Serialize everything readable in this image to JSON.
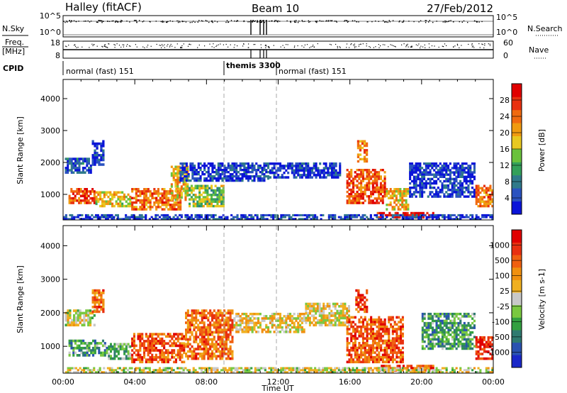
{
  "header": {
    "station": "Halley (fitACF)",
    "beam": "Beam 10",
    "date": "27/Feb/2012"
  },
  "aux_panels": {
    "nsky_label": "N.Sky",
    "nsky_ticks": [
      "10^5",
      "10^0"
    ],
    "nsearch_label": "N.Search",
    "nsearch_ticks": [
      "10^5",
      "10^0"
    ],
    "freq_label_1": "Freq.",
    "freq_label_2": "[MHz]",
    "freq_ticks": [
      "18",
      "8"
    ],
    "nave_label": "Nave",
    "nave_ticks": [
      "60",
      "0"
    ],
    "cpid_label": "CPID",
    "cpid_segments": [
      {
        "label": "normal (fast) 151",
        "start_hour": 0.0,
        "end_hour": 9.0
      },
      {
        "label": "themis 3300",
        "start_hour": 9.0,
        "end_hour": 12.0
      },
      {
        "label": "normal (fast) 151",
        "start_hour": 12.0,
        "end_hour": 24.0
      }
    ]
  },
  "chart_data": [
    {
      "type": "heatmap",
      "name": "power-panel",
      "ylabel": "Slant Range [km]",
      "ylim": [
        200,
        4600
      ],
      "y_ticks": [
        1000,
        2000,
        3000,
        4000
      ],
      "xlim": [
        0,
        24
      ],
      "colorbar": {
        "label": "Power [dB]",
        "tick_labels": [
          "4",
          "8",
          "12",
          "16",
          "20",
          "24",
          "28"
        ],
        "colors": [
          "#0a14d8",
          "#2a52c0",
          "#2f7a8a",
          "#33a05a",
          "#6ac23c",
          "#e8c820",
          "#f09a10",
          "#f06a10",
          "#e83010",
          "#e00000"
        ]
      },
      "regions": [
        {
          "t0": 0.1,
          "t1": 1.6,
          "r0": 1650,
          "r1": 2150,
          "level": 0.15
        },
        {
          "t0": 1.6,
          "t1": 2.3,
          "r0": 1900,
          "r1": 2700,
          "level": 0.1
        },
        {
          "t0": 0.3,
          "t1": 1.8,
          "r0": 700,
          "r1": 1200,
          "level": 0.8
        },
        {
          "t0": 1.8,
          "t1": 3.8,
          "r0": 600,
          "r1": 1100,
          "level": 0.55
        },
        {
          "t0": 3.8,
          "t1": 6.6,
          "r0": 500,
          "r1": 1200,
          "level": 0.75
        },
        {
          "t0": 6.0,
          "t1": 7.0,
          "r0": 800,
          "r1": 1900,
          "level": 0.6
        },
        {
          "t0": 7.0,
          "t1": 9.0,
          "r0": 600,
          "r1": 1300,
          "level": 0.45
        },
        {
          "t0": 6.5,
          "t1": 11.5,
          "r0": 1400,
          "r1": 2000,
          "level": 0.1
        },
        {
          "t0": 11.5,
          "t1": 15.5,
          "r0": 1500,
          "r1": 2000,
          "level": 0.08
        },
        {
          "t0": 16.4,
          "t1": 17.0,
          "r0": 2000,
          "r1": 2700,
          "level": 0.7
        },
        {
          "t0": 15.8,
          "t1": 18.0,
          "r0": 700,
          "r1": 1800,
          "level": 0.8
        },
        {
          "t0": 18.0,
          "t1": 19.3,
          "r0": 500,
          "r1": 1200,
          "level": 0.6
        },
        {
          "t0": 17.5,
          "t1": 20.7,
          "r0": 250,
          "r1": 450,
          "level": 0.95
        },
        {
          "t0": 19.3,
          "t1": 23.0,
          "r0": 900,
          "r1": 2000,
          "level": 0.08
        },
        {
          "t0": 23.0,
          "t1": 24.0,
          "r0": 600,
          "r1": 1300,
          "level": 0.75
        },
        {
          "t0": 0.0,
          "t1": 24.0,
          "r0": 200,
          "r1": 380,
          "level": 0.12
        }
      ]
    },
    {
      "type": "heatmap",
      "name": "velocity-panel",
      "ylabel": "Slant Range [km]",
      "xlabel": "Time UT",
      "ylim": [
        200,
        4600
      ],
      "y_ticks": [
        1000,
        2000,
        3000,
        4000
      ],
      "xlim": [
        0,
        24
      ],
      "x_tick_labels": [
        "00:00",
        "04:00",
        "08:00",
        "12:00",
        "16:00",
        "20:00",
        "00:00"
      ],
      "colorbar": {
        "label": "Velocity [m s-1]",
        "tick_labels": [
          "1000",
          "500",
          "100",
          "25",
          "-25",
          "-100",
          "-500",
          "-1000"
        ],
        "colors": [
          "#1a28c8",
          "#2a52b0",
          "#2f7a70",
          "#33a040",
          "#7ac840",
          "#c8c8c8",
          "#f0b020",
          "#f09010",
          "#f06010",
          "#e83010",
          "#e00000"
        ]
      },
      "regions": [
        {
          "t0": 0.1,
          "t1": 1.8,
          "r0": 1600,
          "r1": 2100,
          "level": 0.5
        },
        {
          "t0": 1.6,
          "t1": 2.3,
          "r0": 2000,
          "r1": 2700,
          "level": 0.75
        },
        {
          "t0": 0.3,
          "t1": 2.5,
          "r0": 700,
          "r1": 1200,
          "level": 0.3
        },
        {
          "t0": 2.5,
          "t1": 3.8,
          "r0": 600,
          "r1": 1100,
          "level": 0.35
        },
        {
          "t0": 3.8,
          "t1": 6.8,
          "r0": 500,
          "r1": 1400,
          "level": 0.8
        },
        {
          "t0": 6.8,
          "t1": 9.5,
          "r0": 600,
          "r1": 2100,
          "level": 0.75
        },
        {
          "t0": 9.5,
          "t1": 13.5,
          "r0": 1400,
          "r1": 2000,
          "level": 0.55
        },
        {
          "t0": 13.5,
          "t1": 16.0,
          "r0": 1600,
          "r1": 2300,
          "level": 0.55
        },
        {
          "t0": 16.3,
          "t1": 17.0,
          "r0": 2000,
          "r1": 2700,
          "level": 0.85
        },
        {
          "t0": 15.8,
          "t1": 19.0,
          "r0": 500,
          "r1": 1900,
          "level": 0.8
        },
        {
          "t0": 17.5,
          "t1": 20.7,
          "r0": 250,
          "r1": 450,
          "level": 0.85
        },
        {
          "t0": 20.0,
          "t1": 23.0,
          "r0": 900,
          "r1": 2000,
          "level": 0.3
        },
        {
          "t0": 23.0,
          "t1": 24.0,
          "r0": 600,
          "r1": 1300,
          "level": 0.9
        },
        {
          "t0": 0.0,
          "t1": 24.0,
          "r0": 200,
          "r1": 380,
          "level": 0.5
        }
      ]
    }
  ]
}
